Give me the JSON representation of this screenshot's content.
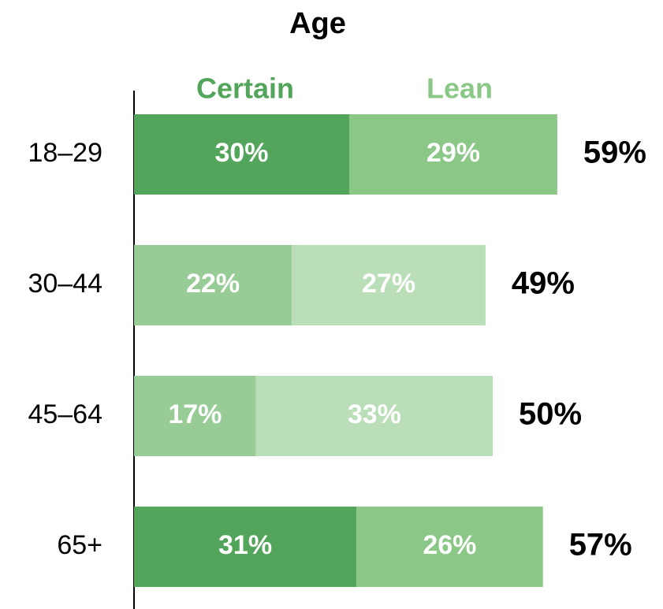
{
  "chart_data": {
    "type": "stacked_bar_horizontal",
    "title": "Age",
    "categories": [
      "18–29",
      "30–44",
      "45–64",
      "65+"
    ],
    "series": [
      {
        "name": "Certain",
        "color": "#52a55a",
        "colors": [
          "#52a55a",
          "#98cc96",
          "#98cc96",
          "#52a55a"
        ],
        "values": [
          30,
          22,
          17,
          31
        ],
        "value_labels": [
          "30%",
          "22%",
          "17%",
          "31%"
        ]
      },
      {
        "name": "Lean",
        "color": "#8bc786",
        "colors": [
          "#8bc786",
          "#badeb8",
          "#badeb8",
          "#8bc786"
        ],
        "values": [
          29,
          27,
          33,
          26
        ],
        "value_labels": [
          "29%",
          "27%",
          "33%",
          "26%"
        ]
      }
    ],
    "totals": [
      59,
      49,
      50,
      57
    ],
    "total_labels": [
      "59%",
      "49%",
      "50%",
      "57%"
    ]
  }
}
